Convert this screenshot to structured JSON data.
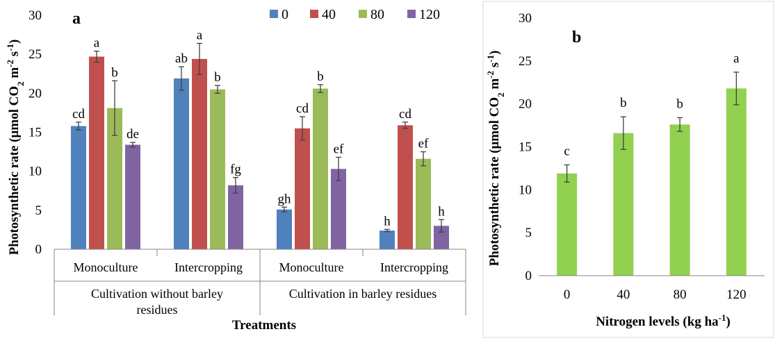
{
  "chart_data": [
    {
      "panel_label": "a",
      "type": "bar",
      "ylabel_main": "Photosynthetic rate (μmol CO",
      "ylabel_sub": "2",
      "ylabel_mid": " m",
      "ylabel_sup1": "-2",
      "ylabel_mid2": " s",
      "ylabel_sup2": "-1",
      "ylabel_end": ")",
      "xlabel": "Treatments",
      "ylim": [
        0,
        30
      ],
      "yticks": [
        0,
        5,
        10,
        15,
        20,
        25,
        30
      ],
      "categories": [
        "Monoculture",
        "Intercropping",
        "Monoculture",
        "Intercropping"
      ],
      "groups": [
        "Cultivation without barley residues",
        "Cultivation in barley residues"
      ],
      "group_label_lines": [
        [
          "Cultivation without barley",
          "residues"
        ],
        [
          "Cultivation in barley residues"
        ]
      ],
      "legend_position": "top",
      "series": [
        {
          "name": "0",
          "color": "#4F81BD",
          "values": [
            15.8,
            21.9,
            5.1,
            2.4
          ],
          "errors": [
            0.5,
            1.5,
            0.3,
            0.15
          ],
          "letters": [
            "cd",
            "ab",
            "gh",
            "h"
          ]
        },
        {
          "name": "40",
          "color": "#C0504D",
          "values": [
            24.7,
            24.4,
            15.5,
            15.9
          ],
          "errors": [
            0.7,
            2.0,
            1.5,
            0.4
          ],
          "letters": [
            "a",
            "a",
            "cd",
            "cd"
          ]
        },
        {
          "name": "80",
          "color": "#9BBB59",
          "values": [
            18.1,
            20.5,
            20.6,
            11.6
          ],
          "errors": [
            3.5,
            0.5,
            0.5,
            0.9
          ],
          "letters": [
            "b",
            "b",
            "b",
            "ef"
          ]
        },
        {
          "name": "120",
          "color": "#8064A2",
          "values": [
            13.4,
            8.2,
            10.3,
            3.0
          ],
          "errors": [
            0.3,
            1.0,
            1.5,
            0.8
          ],
          "letters": [
            "de",
            "fg",
            "ef",
            "h"
          ]
        }
      ]
    },
    {
      "panel_label": "b",
      "type": "bar",
      "ylabel_main": "Photosynthetic rate (μmol CO",
      "ylabel_sub": "2",
      "ylabel_mid": " m",
      "ylabel_sup1": "-2",
      "ylabel_mid2": " s",
      "ylabel_sup2": "-1",
      "ylabel_end": ")",
      "xlabel_main": "Nitrogen levels (kg ha",
      "xlabel_sup": "-1",
      "xlabel_end": ")",
      "ylim": [
        0,
        30
      ],
      "yticks": [
        0,
        5,
        10,
        15,
        20,
        25,
        30
      ],
      "categories": [
        "0",
        "40",
        "80",
        "120"
      ],
      "color": "#92D050",
      "values": [
        11.9,
        16.6,
        17.6,
        21.8
      ],
      "errors": [
        1.0,
        1.9,
        0.8,
        1.9
      ],
      "letters": [
        "c",
        "b",
        "b",
        "a"
      ]
    }
  ]
}
